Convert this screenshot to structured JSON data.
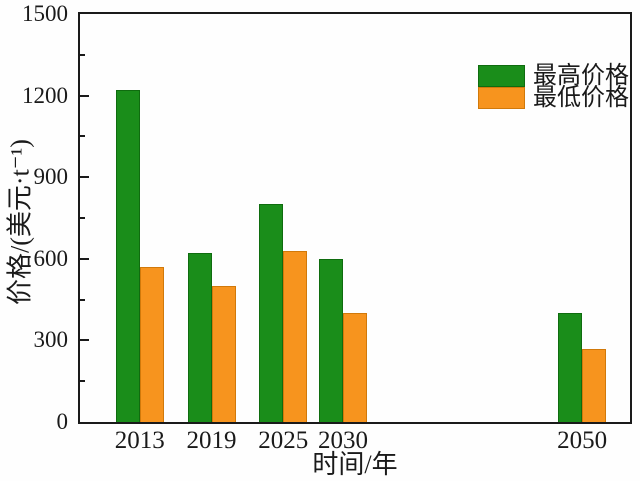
{
  "chart_data": {
    "type": "bar",
    "title": "",
    "xlabel": "时间/年",
    "ylabel": "价格/(美元·t⁻¹)",
    "categories": [
      "2013",
      "2019",
      "2025",
      "2030",
      "2050"
    ],
    "x_years": [
      2013,
      2019,
      2025,
      2030,
      2050
    ],
    "series": [
      {
        "name": "最高价格",
        "color": "#1a8d1a",
        "edge_color": "#0f6c0f",
        "values": [
          1220,
          620,
          800,
          600,
          400
        ]
      },
      {
        "name": "最低价格",
        "color": "#f7941e",
        "edge_color": "#d1790a",
        "values": [
          570,
          500,
          630,
          400,
          270
        ]
      }
    ],
    "ylim": [
      0,
      1500
    ],
    "xlim": [
      2008,
      2054
    ],
    "yticks_major": [
      0,
      300,
      600,
      900,
      1200,
      1500
    ],
    "yticks_minor": [
      150,
      450,
      750,
      1050,
      1350
    ],
    "grid": false,
    "legend_position": "top-right",
    "axis_color": "#1a1a1a",
    "text_color": "#1a1a1a",
    "background_color": "#fefefe"
  }
}
